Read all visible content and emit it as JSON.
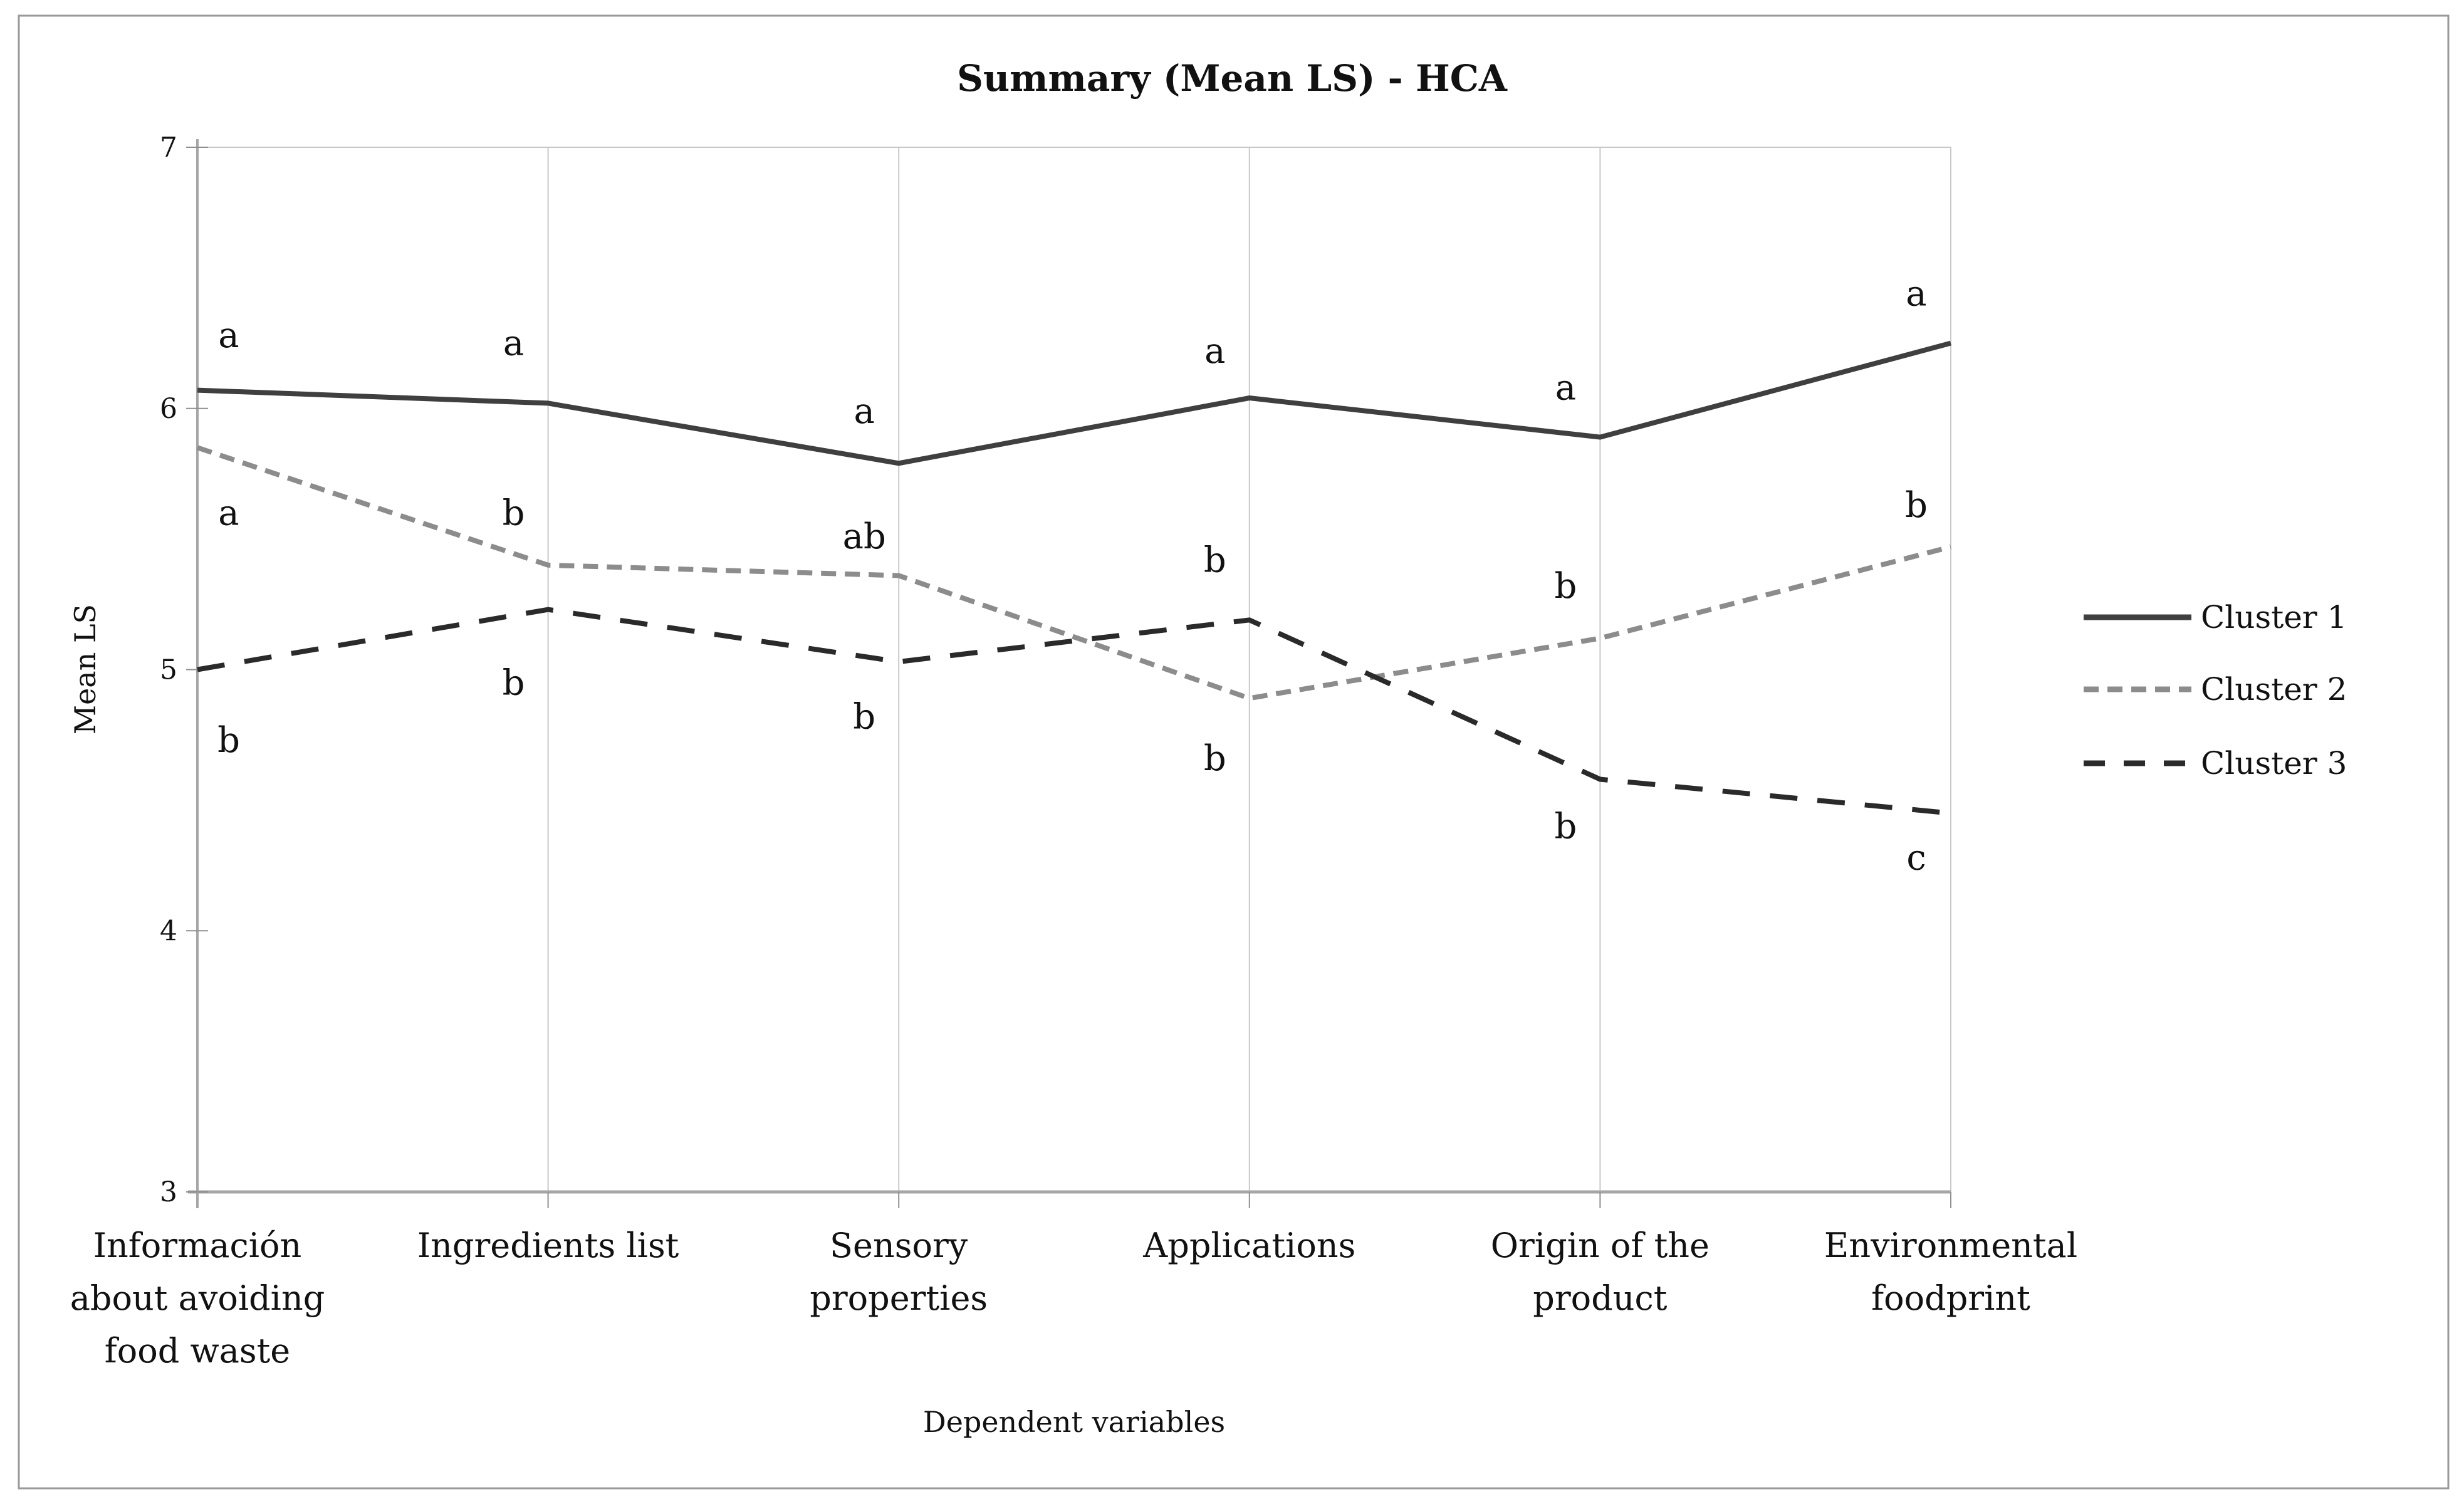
{
  "title": "Summary (Mean LS) - HCA",
  "chart_data": {
    "type": "line",
    "title": "Summary (Mean LS) - HCA",
    "xlabel": "Dependent variables",
    "ylabel": "Mean LS",
    "ylim": [
      3,
      7
    ],
    "yticks": [
      3,
      4,
      5,
      6,
      7
    ],
    "grid": {
      "vertical": true,
      "horizontal": false
    },
    "legend_position": "right",
    "categories": [
      "Información about avoiding food waste",
      "Ingredients list",
      "Sensory properties",
      "Applications",
      "Origin of the product",
      "Environmental foodprint"
    ],
    "category_label_lines": [
      [
        "Información",
        "about avoiding",
        "food waste"
      ],
      [
        "Ingredients list"
      ],
      [
        "Sensory",
        "properties"
      ],
      [
        "Applications"
      ],
      [
        "Origin of the",
        "product"
      ],
      [
        "Environmental",
        "foodprint"
      ]
    ],
    "series": [
      {
        "name": "Cluster 1",
        "line_style": "solid",
        "color": "#3f3f3f",
        "values": [
          6.07,
          6.02,
          5.79,
          6.04,
          5.89,
          6.25
        ]
      },
      {
        "name": "Cluster 2",
        "line_style": "dashed-short",
        "color": "#8c8c8c",
        "values": [
          5.85,
          5.4,
          5.36,
          4.89,
          5.12,
          5.47
        ]
      },
      {
        "name": "Cluster 3",
        "line_style": "dashed-long",
        "color": "#2a2a2a",
        "values": [
          5.0,
          5.23,
          5.03,
          5.19,
          4.58,
          4.45
        ]
      }
    ],
    "significance_letters": [
      {
        "category_index": 0,
        "text": "a",
        "at_value": 6.28
      },
      {
        "category_index": 0,
        "text": "a",
        "at_value": 5.6
      },
      {
        "category_index": 0,
        "text": "b",
        "at_value": 4.73
      },
      {
        "category_index": 1,
        "text": "a",
        "at_value": 6.25
      },
      {
        "category_index": 1,
        "text": "b",
        "at_value": 5.6
      },
      {
        "category_index": 1,
        "text": "b",
        "at_value": 4.95
      },
      {
        "category_index": 2,
        "text": "a",
        "at_value": 5.99
      },
      {
        "category_index": 2,
        "text": "ab",
        "at_value": 5.51
      },
      {
        "category_index": 2,
        "text": "b",
        "at_value": 4.82
      },
      {
        "category_index": 3,
        "text": "a",
        "at_value": 6.22
      },
      {
        "category_index": 3,
        "text": "b",
        "at_value": 5.42
      },
      {
        "category_index": 3,
        "text": "b",
        "at_value": 4.66
      },
      {
        "category_index": 4,
        "text": "a",
        "at_value": 6.08
      },
      {
        "category_index": 4,
        "text": "b",
        "at_value": 5.32
      },
      {
        "category_index": 4,
        "text": "b",
        "at_value": 4.4
      },
      {
        "category_index": 5,
        "text": "a",
        "at_value": 6.44
      },
      {
        "category_index": 5,
        "text": "b",
        "at_value": 5.63
      },
      {
        "category_index": 5,
        "text": "c",
        "at_value": 4.28
      }
    ]
  }
}
